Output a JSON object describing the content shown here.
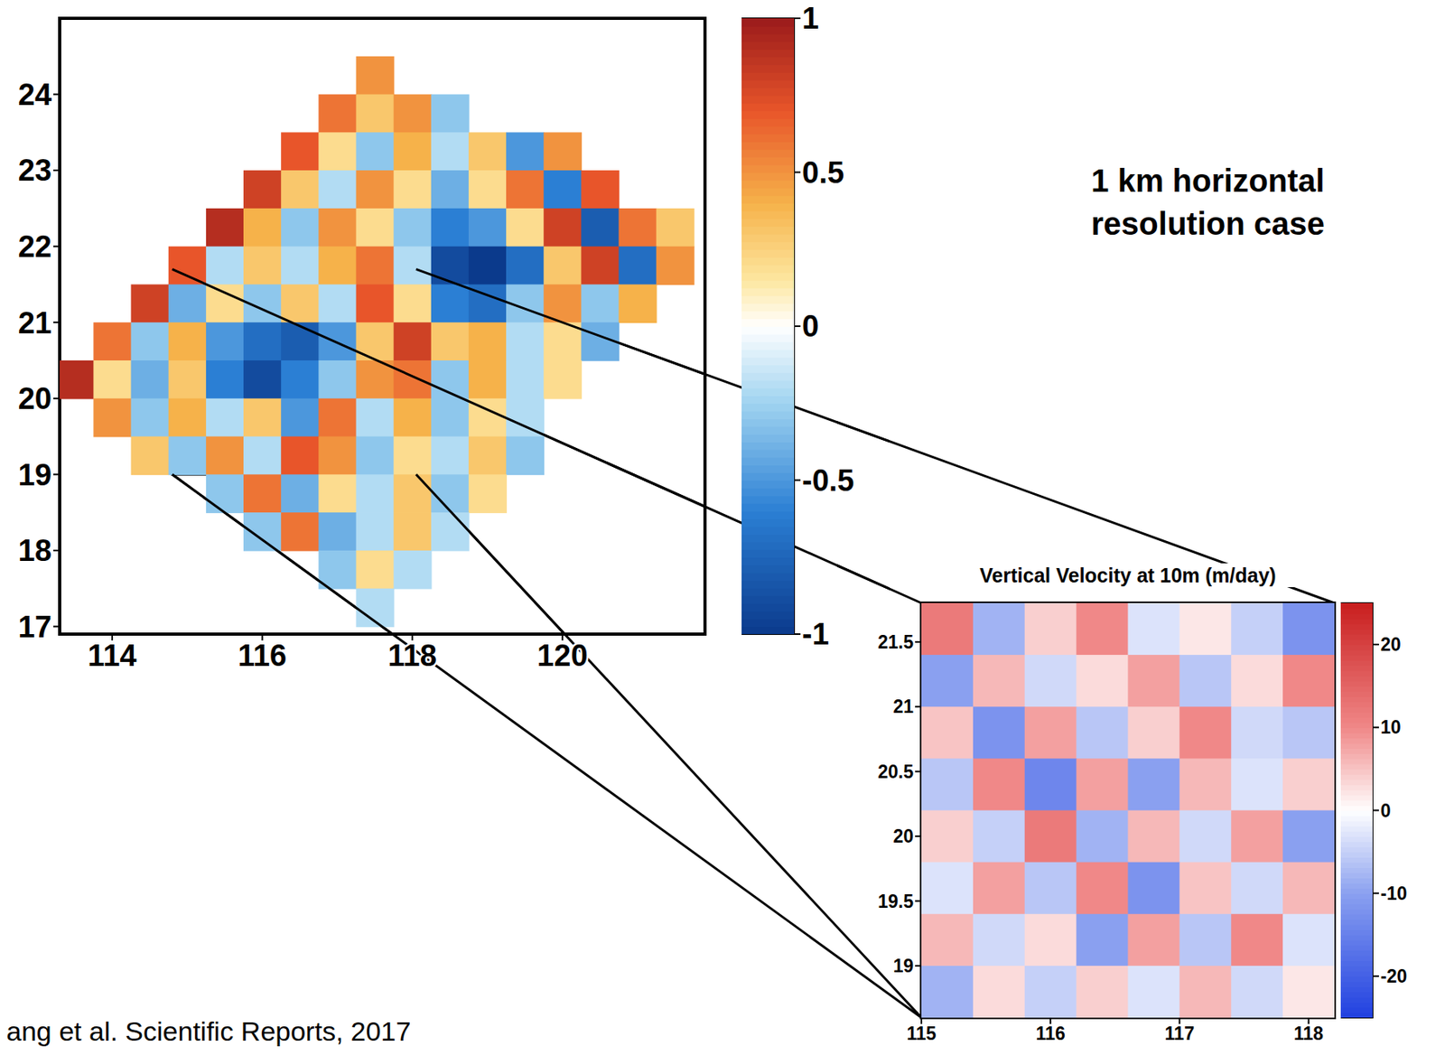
{
  "chart_data": [
    {
      "type": "heatmap",
      "x": [
        113.5,
        114,
        114.5,
        115,
        115.5,
        116,
        116.5,
        117,
        117.5,
        118,
        118.5,
        119,
        119.5,
        120,
        120.5,
        121,
        121.5
      ],
      "y": [
        24.75,
        24.25,
        23.75,
        23.25,
        22.75,
        22.25,
        21.75,
        21.25,
        20.75,
        20.25,
        19.75,
        19.25,
        18.75,
        18.25,
        17.75,
        17.25
      ],
      "values": [
        [
          null,
          null,
          null,
          null,
          null,
          null,
          null,
          null,
          null,
          null,
          null,
          null,
          null,
          null,
          null,
          null,
          null
        ],
        [
          null,
          null,
          null,
          null,
          null,
          null,
          null,
          null,
          0.5,
          null,
          null,
          null,
          null,
          null,
          null,
          null,
          null
        ],
        [
          null,
          null,
          null,
          null,
          null,
          null,
          null,
          0.6,
          0.3,
          0.5,
          -0.3,
          null,
          null,
          null,
          null,
          null,
          null
        ],
        [
          null,
          null,
          null,
          null,
          null,
          null,
          0.7,
          0.2,
          -0.3,
          0.4,
          -0.2,
          0.3,
          -0.5,
          0.5,
          null,
          null,
          null
        ],
        [
          null,
          null,
          null,
          null,
          null,
          0.8,
          0.3,
          -0.2,
          0.5,
          0.2,
          -0.4,
          0.2,
          0.6,
          -0.6,
          0.7,
          null,
          null
        ],
        [
          null,
          null,
          null,
          null,
          0.9,
          0.4,
          -0.3,
          0.5,
          0.2,
          -0.3,
          -0.6,
          -0.5,
          0.2,
          0.8,
          -0.8,
          0.6,
          0.3
        ],
        [
          null,
          null,
          null,
          0.7,
          -0.2,
          0.3,
          -0.2,
          0.4,
          0.6,
          -0.2,
          -0.9,
          -1.0,
          -0.7,
          0.3,
          0.8,
          -0.7,
          0.5
        ],
        [
          null,
          null,
          0.8,
          -0.4,
          0.2,
          -0.3,
          0.3,
          -0.2,
          0.7,
          0.2,
          -0.6,
          -0.7,
          -0.3,
          0.5,
          -0.3,
          0.4,
          null
        ],
        [
          null,
          0.6,
          -0.3,
          0.4,
          -0.5,
          -0.7,
          -0.8,
          -0.5,
          0.3,
          0.8,
          0.3,
          0.4,
          -0.2,
          0.2,
          -0.4,
          null,
          null
        ],
        [
          0.9,
          0.2,
          -0.4,
          0.3,
          -0.6,
          -0.9,
          -0.6,
          -0.3,
          0.5,
          0.6,
          -0.3,
          0.4,
          -0.2,
          0.2,
          null,
          null,
          null
        ],
        [
          null,
          0.5,
          -0.3,
          0.4,
          -0.2,
          0.3,
          -0.5,
          0.6,
          -0.2,
          0.4,
          -0.3,
          0.2,
          -0.2,
          null,
          null,
          null,
          null
        ],
        [
          null,
          null,
          0.3,
          -0.3,
          0.5,
          -0.2,
          0.7,
          0.5,
          -0.3,
          0.2,
          -0.2,
          0.3,
          -0.3,
          null,
          null,
          null,
          null
        ],
        [
          null,
          null,
          null,
          null,
          -0.3,
          0.6,
          -0.4,
          0.2,
          -0.2,
          0.3,
          -0.3,
          0.2,
          null,
          null,
          null,
          null,
          null
        ],
        [
          null,
          null,
          null,
          null,
          null,
          -0.3,
          0.6,
          -0.4,
          -0.2,
          0.3,
          -0.2,
          null,
          null,
          null,
          null,
          null,
          null
        ],
        [
          null,
          null,
          null,
          null,
          null,
          null,
          null,
          -0.3,
          0.2,
          -0.2,
          null,
          null,
          null,
          null,
          null,
          null,
          null
        ],
        [
          null,
          null,
          null,
          null,
          null,
          null,
          null,
          null,
          -0.2,
          null,
          null,
          null,
          null,
          null,
          null,
          null,
          null
        ]
      ],
      "xlim": [
        113.3,
        121.9
      ],
      "xticks": [
        114,
        116,
        118,
        120
      ],
      "ylim": [
        16.9,
        25.0
      ],
      "yticks": [
        17,
        18,
        19,
        20,
        21,
        22,
        23,
        24
      ],
      "colorbar": {
        "lim": [
          -1,
          1
        ],
        "ticks": [
          1,
          0.5,
          0,
          -0.5,
          -1
        ]
      },
      "zoom_box": {
        "x": [
          114.8,
          118.05
        ],
        "y": [
          19.0,
          21.7
        ]
      },
      "annotations": [
        "1 km horizontal resolution case",
        "ang et al. Scientific Reports, 2017"
      ]
    },
    {
      "type": "heatmap",
      "title": "Vertical Velocity at 10m (m/day)",
      "x": [
        115.2,
        115.6,
        116.0,
        116.4,
        116.8,
        117.2,
        117.6,
        118.0
      ],
      "y": [
        21.6,
        21.2,
        20.8,
        20.4,
        20.0,
        19.6,
        19.2,
        18.8
      ],
      "values": [
        [
          12,
          -8,
          4,
          10,
          -3,
          2,
          -5,
          -12
        ],
        [
          -10,
          6,
          -4,
          3,
          8,
          -6,
          3,
          10
        ],
        [
          5,
          -12,
          8,
          -6,
          4,
          10,
          -4,
          -6
        ],
        [
          -6,
          10,
          -14,
          8,
          -10,
          6,
          -3,
          4
        ],
        [
          4,
          -5,
          12,
          -8,
          6,
          -4,
          8,
          -10
        ],
        [
          -3,
          8,
          -6,
          10,
          -12,
          5,
          -4,
          6
        ],
        [
          6,
          -4,
          3,
          -10,
          8,
          -6,
          10,
          -3
        ],
        [
          -8,
          3,
          -5,
          4,
          -3,
          6,
          -4,
          2
        ]
      ],
      "xlim": [
        115,
        118.2
      ],
      "xticks": [
        115,
        116,
        117,
        118
      ],
      "ylim": [
        18.6,
        21.8
      ],
      "yticks": [
        19,
        19.5,
        20,
        20.5,
        21,
        21.5
      ],
      "colorbar": {
        "lim": [
          -25,
          25
        ],
        "ticks": [
          20,
          10,
          0,
          -10,
          -20
        ]
      }
    }
  ]
}
